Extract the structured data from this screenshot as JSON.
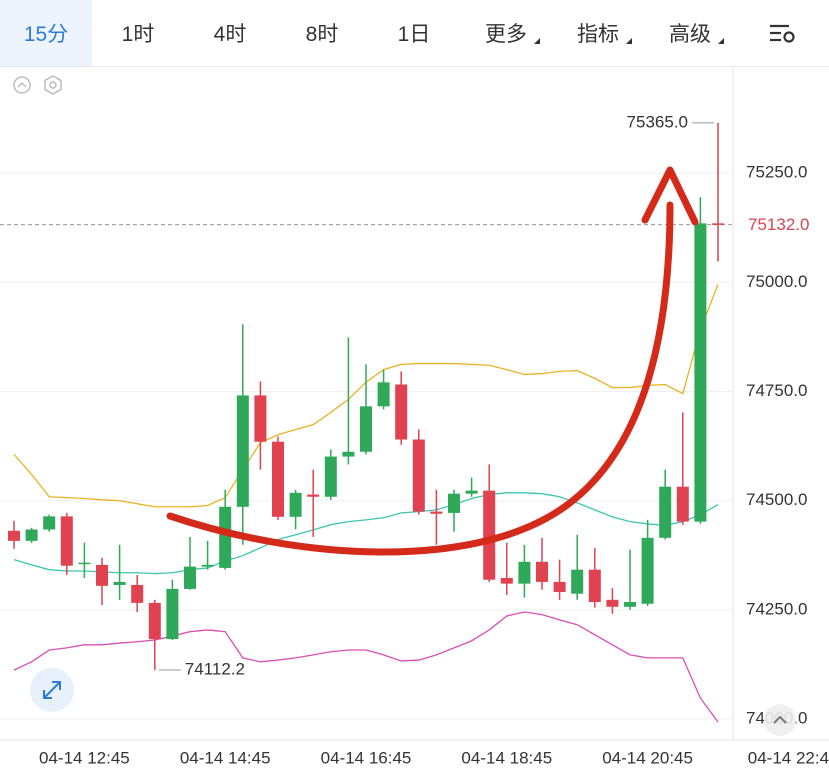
{
  "tabs": [
    "15分",
    "1时",
    "4时",
    "8时",
    "1日",
    "更多",
    "指标",
    "高级"
  ],
  "chart_data": {
    "type": "candlestick",
    "open": [
      74431,
      74408,
      74434,
      74464,
      74356,
      74353,
      74307,
      74307,
      74266,
      74183,
      74298,
      74349,
      74346,
      74486,
      74741,
      74635,
      74463,
      74514,
      74509,
      74601,
      74612,
      74716,
      74766,
      74640,
      74475,
      74472,
      74516,
      74523,
      74323,
      74310,
      74360,
      74314,
      74287,
      74342,
      74273,
      74257,
      74264,
      74415,
      74532,
      74452,
      75135
    ],
    "high": [
      74454,
      74438,
      74468,
      74472,
      74404,
      74369,
      74399,
      74330,
      74273,
      74319,
      74417,
      74408,
      74525,
      74904,
      74773,
      74647,
      74525,
      74571,
      74617,
      74874,
      74812,
      74800,
      74796,
      74663,
      74525,
      74525,
      74553,
      74583,
      74404,
      74399,
      74415,
      74365,
      74422,
      74392,
      74300,
      74388,
      74456,
      74571,
      74702,
      75195,
      75365
    ],
    "low": [
      74390,
      74403,
      74429,
      74330,
      74323,
      74261,
      74273,
      74245,
      74112.2,
      74181,
      74296,
      74342,
      74342,
      74399,
      74571,
      74456,
      74434,
      74417,
      74502,
      74583,
      74606,
      74709,
      74628,
      74468,
      74399,
      74429,
      74509,
      74314,
      74284,
      74278,
      74296,
      74273,
      74273,
      74255,
      74241,
      74250,
      74259,
      74411,
      74445,
      74447,
      75048
    ],
    "close": [
      74408,
      74434,
      74464,
      74351,
      74358,
      74305,
      74314,
      74266,
      74183,
      74298,
      74349,
      74353,
      74486,
      74741,
      74635,
      74463,
      74518,
      74509,
      74601,
      74612,
      74716,
      74771,
      74640,
      74475,
      74470,
      74516,
      74523,
      74319,
      74310,
      74360,
      74314,
      74291,
      74342,
      74268,
      74257,
      74268,
      74415,
      74532,
      74452,
      75135,
      75132
    ],
    "up_color": "#2fa85a",
    "down_color": "#e0434f",
    "bands": [
      {
        "color": "#e6b422",
        "values": [
          74606,
          74560,
          74509,
          74507,
          74505,
          74502,
          74500,
          74493,
          74486,
          74486,
          74486,
          74489,
          74507,
          74571,
          74633,
          74651,
          74663,
          74674,
          74702,
          74732,
          74771,
          74800,
          74812,
          74814,
          74814,
          74814,
          74812,
          74810,
          74800,
          74789,
          74791,
          74796,
          74798,
          74780,
          74759,
          74759,
          74764,
          74766,
          74745,
          74892,
          74995
        ]
      },
      {
        "color": "#3cc6b0",
        "values": [
          74365,
          74353,
          74342,
          74339,
          74339,
          74337,
          74335,
          74335,
          74333,
          74335,
          74342,
          74346,
          74362,
          74374,
          74392,
          74411,
          74422,
          74433,
          74445,
          74452,
          74456,
          74461,
          74472,
          74475,
          74479,
          74491,
          74505,
          74514,
          74518,
          74518,
          74516,
          74509,
          74495,
          74479,
          74463,
          74452,
          74447,
          74443,
          74452,
          74468,
          74491
        ]
      },
      {
        "color": "#d84fb4",
        "values": [
          74112,
          74131,
          74158,
          74163,
          74170,
          74170,
          74174,
          74177,
          74181,
          74190,
          74200,
          74204,
          74200,
          74140,
          74131,
          74135,
          74140,
          74147,
          74154,
          74158,
          74158,
          74147,
          74133,
          74135,
          74147,
          74163,
          74179,
          74204,
          74236,
          74245,
          74239,
          74227,
          74216,
          74193,
          74170,
          74147,
          74140,
          74140,
          74140,
          74048,
          73993
        ]
      }
    ],
    "ylim": [
      73952,
      75493
    ],
    "yticks": [
      {
        "value": 75250,
        "label": "75250.0"
      },
      {
        "value": 75000,
        "label": "75000.0"
      },
      {
        "value": 74750,
        "label": "74750.0"
      },
      {
        "value": 74500,
        "label": "74500.0"
      },
      {
        "value": 74250,
        "label": "74250.0"
      },
      {
        "value": 74000,
        "label": "74000.0"
      }
    ],
    "xticks": [
      {
        "value": 4,
        "label": "04-14 12:45"
      },
      {
        "value": 12,
        "label": "04-14 14:45"
      },
      {
        "value": 20,
        "label": "04-14 16:45"
      },
      {
        "value": 28,
        "label": "04-14 18:45"
      },
      {
        "value": 36,
        "label": "04-14 20:45"
      },
      {
        "value": 44,
        "label": "04-14 22:4"
      }
    ],
    "max_label": {
      "value": 75365,
      "label": "75365.0"
    },
    "last_price": {
      "value": 75132,
      "label": "75132.0"
    },
    "grid": true
  }
}
